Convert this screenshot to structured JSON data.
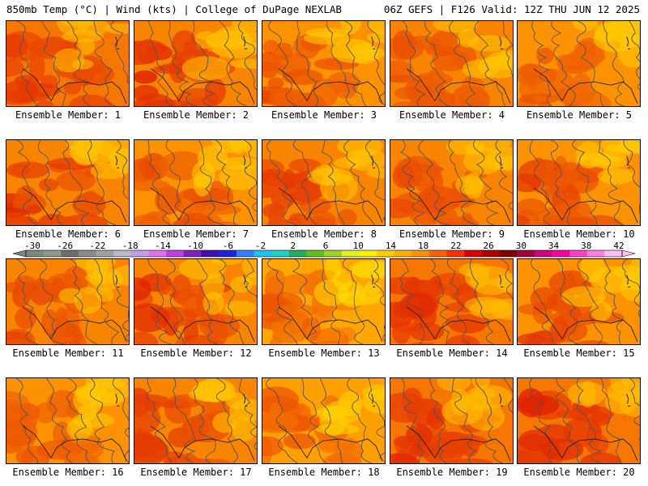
{
  "header": {
    "left_title": "850mb Temp (°C) | Wind (kts) | College of DuPage NEXLAB",
    "right_title": "06Z GEFS | F126 Valid: 12Z THU JUN 12 2025"
  },
  "panels": [
    {
      "label": "Ensemble Member: 1",
      "palette": [
        0.65,
        0.8
      ]
    },
    {
      "label": "Ensemble Member: 2",
      "palette": [
        0.6,
        0.9
      ]
    },
    {
      "label": "Ensemble Member: 3",
      "palette": [
        0.55,
        0.75
      ]
    },
    {
      "label": "Ensemble Member: 4",
      "palette": [
        0.6,
        0.7
      ]
    },
    {
      "label": "Ensemble Member: 5",
      "palette": [
        0.55,
        0.7
      ]
    },
    {
      "label": "Ensemble Member: 6",
      "palette": [
        0.6,
        0.85
      ]
    },
    {
      "label": "Ensemble Member: 7",
      "palette": [
        0.55,
        0.75
      ]
    },
    {
      "label": "Ensemble Member: 8",
      "palette": [
        0.6,
        0.8
      ]
    },
    {
      "label": "Ensemble Member: 9",
      "palette": [
        0.6,
        0.75
      ]
    },
    {
      "label": "Ensemble Member: 10",
      "palette": [
        0.55,
        0.8
      ]
    },
    {
      "label": "Ensemble Member: 11",
      "palette": [
        0.6,
        0.75
      ]
    },
    {
      "label": "Ensemble Member: 12",
      "palette": [
        0.6,
        0.85
      ]
    },
    {
      "label": "Ensemble Member: 13",
      "palette": [
        0.45,
        0.7
      ]
    },
    {
      "label": "Ensemble Member: 14",
      "palette": [
        0.65,
        0.85
      ]
    },
    {
      "label": "Ensemble Member: 15",
      "palette": [
        0.55,
        0.8
      ]
    },
    {
      "label": "Ensemble Member: 16",
      "palette": [
        0.55,
        0.7
      ]
    },
    {
      "label": "Ensemble Member: 17",
      "palette": [
        0.6,
        0.8
      ]
    },
    {
      "label": "Ensemble Member: 18",
      "palette": [
        0.5,
        0.7
      ]
    },
    {
      "label": "Ensemble Member: 19",
      "palette": [
        0.65,
        0.85
      ]
    },
    {
      "label": "Ensemble Member: 20",
      "palette": [
        0.65,
        0.9
      ]
    }
  ],
  "colorbar": {
    "labels": [
      "-30",
      "-26",
      "-22",
      "-18",
      "-14",
      "-10",
      "-6",
      "-2",
      "2",
      "6",
      "10",
      "14",
      "18",
      "22",
      "26",
      "30",
      "34",
      "38",
      "42"
    ],
    "colors": [
      "#7a8a7a",
      "#8e9a8e",
      "#6f6f6f",
      "#8a8a8a",
      "#a0a0a0",
      "#b8b8c8",
      "#c0a0e0",
      "#e070f0",
      "#c040e0",
      "#8020c0",
      "#4010b0",
      "#2020e0",
      "#3080ff",
      "#20c0f0",
      "#20d0c0",
      "#20b060",
      "#60c020",
      "#a0d020",
      "#e0f020",
      "#fff000",
      "#ffd000",
      "#ffb000",
      "#ff9000",
      "#ff6000",
      "#ff3000",
      "#e00000",
      "#b00000",
      "#800000",
      "#a00040",
      "#d00080",
      "#ff00a0",
      "#ff40c0",
      "#ff80e0",
      "#ffc0f0"
    ]
  }
}
